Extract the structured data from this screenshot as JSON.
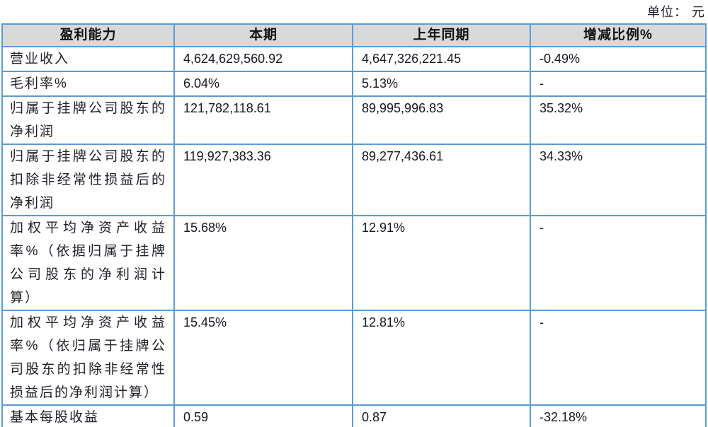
{
  "page": {
    "unit_label": "单位： 元"
  },
  "table": {
    "columns": [
      "盈利能力",
      "本期",
      "上年同期",
      "增减比例%"
    ],
    "rows": [
      {
        "label": "营业收入",
        "current": "4,624,629,560.92",
        "prior": "4,647,326,221.45",
        "change": "-0.49%"
      },
      {
        "label": "毛利率%",
        "current": "6.04%",
        "prior": "5.13%",
        "change": "-"
      },
      {
        "label": "归属于挂牌公司股东的净利润",
        "current": "121,782,118.61",
        "prior": "89,995,996.83",
        "change": "35.32%"
      },
      {
        "label": "归属于挂牌公司股东的扣除非经常性损益后的净利润",
        "current": "119,927,383.36",
        "prior": "89,277,436.61",
        "change": "34.33%"
      },
      {
        "label": "加权平均净资产收益率%（依据归属于挂牌公司股东的净利润计算）",
        "current": "15.68%",
        "prior": "12.91%",
        "change": "-"
      },
      {
        "label": "加权平均净资产收益率%（依归属于挂牌公司股东的扣除非经常性损益后的净利润计算）",
        "current": "15.45%",
        "prior": "12.81%",
        "change": "-"
      },
      {
        "label": "基本每股收益",
        "current": "0.59",
        "prior": "0.87",
        "change": "-32.18%"
      }
    ],
    "colors": {
      "border": "#5b9bd5",
      "header_bg": "#d9d9d9",
      "text": "#1b1b1b"
    }
  }
}
